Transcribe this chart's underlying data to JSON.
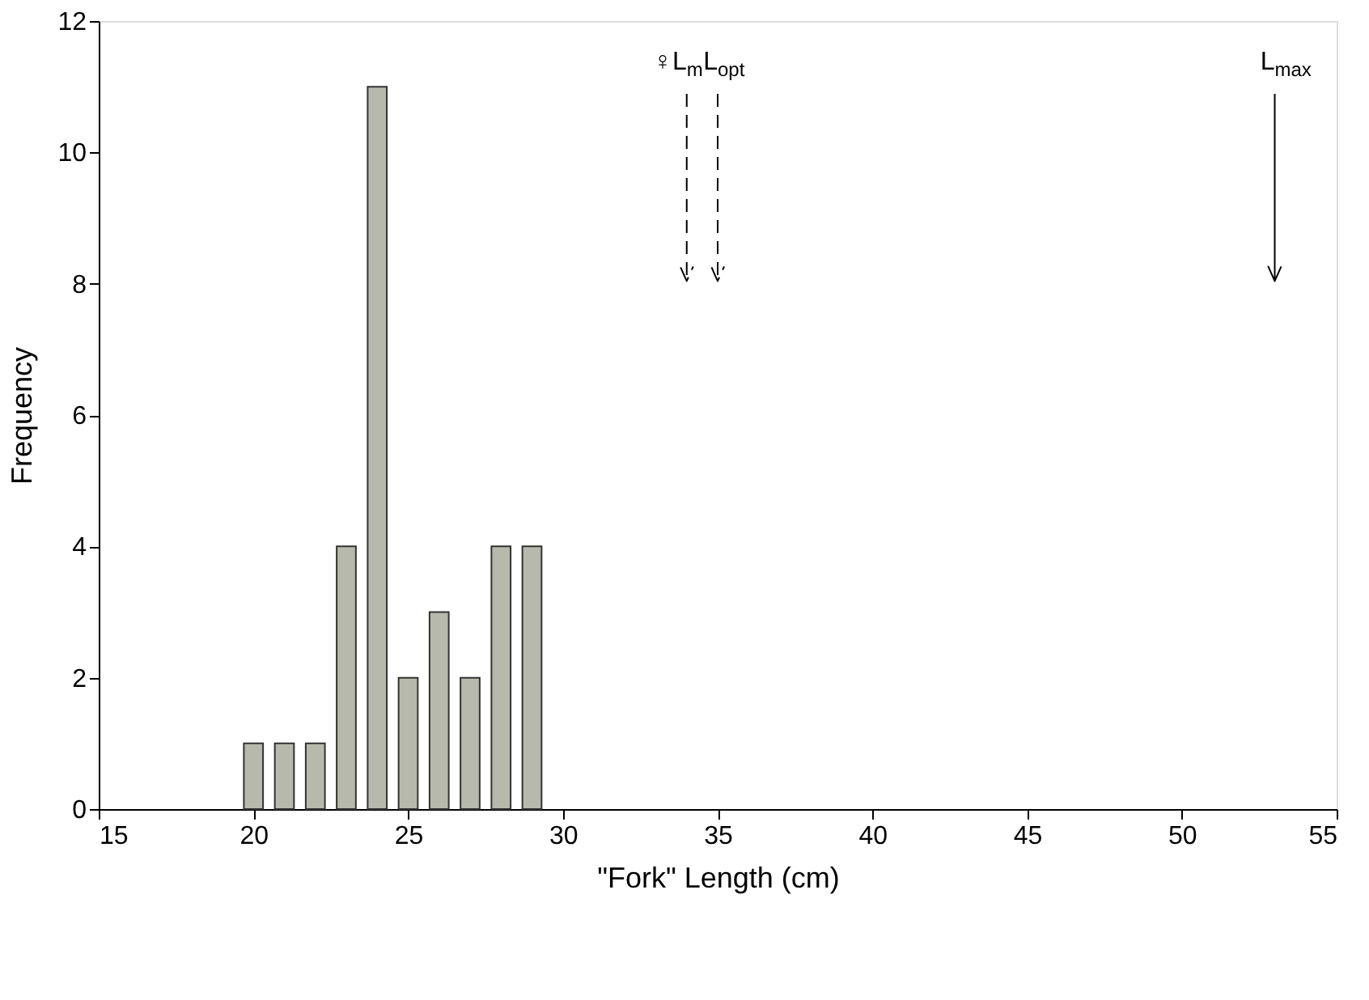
{
  "chart_data": {
    "type": "bar",
    "xlabel": "\"Fork\" Length (cm)",
    "ylabel": "Frequency",
    "x": [
      20,
      21,
      22,
      23,
      24,
      25,
      26,
      27,
      28,
      29
    ],
    "values": [
      1,
      1,
      1,
      4,
      11,
      2,
      3,
      2,
      4,
      4
    ],
    "color": "#b8b9ad",
    "xlim": [
      15,
      55
    ],
    "xticks": [
      15,
      20,
      25,
      30,
      35,
      40,
      45,
      50,
      55
    ],
    "ylim": [
      0,
      12
    ],
    "yticks": [
      0,
      2,
      4,
      6,
      8,
      10,
      12
    ],
    "grid": false,
    "ref_lines": [
      {
        "axis": "x",
        "value": 34,
        "label": "♀L$_{m}$",
        "line_style": "dashed"
      },
      {
        "axis": "x",
        "value": 35,
        "label": "L$_{opt}$",
        "line_style": "dashed"
      },
      {
        "axis": "x",
        "value": 53,
        "label": "L$_{max}$",
        "line_style": "solid"
      }
    ]
  }
}
